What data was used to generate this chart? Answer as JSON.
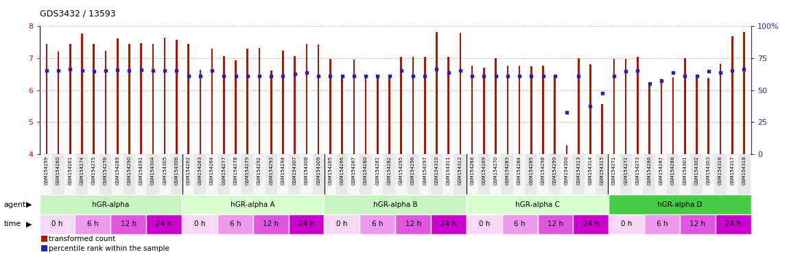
{
  "title": "GDS3432 / 13593",
  "samples": [
    "GSM154259",
    "GSM154260",
    "GSM154261",
    "GSM154274",
    "GSM154275",
    "GSM154276",
    "GSM154289",
    "GSM154290",
    "GSM154291",
    "GSM154304",
    "GSM154305",
    "GSM154306",
    "GSM154262",
    "GSM154263",
    "GSM154264",
    "GSM154277",
    "GSM154278",
    "GSM154279",
    "GSM154292",
    "GSM154293",
    "GSM154294",
    "GSM154307",
    "GSM154308",
    "GSM154309",
    "GSM154265",
    "GSM154266",
    "GSM154267",
    "GSM154280",
    "GSM154281",
    "GSM154282",
    "GSM154295",
    "GSM154296",
    "GSM154297",
    "GSM154310",
    "GSM154311",
    "GSM154312",
    "GSM154268",
    "GSM154269",
    "GSM154270",
    "GSM154283",
    "GSM154284",
    "GSM154285",
    "GSM154298",
    "GSM154299",
    "GSM154300",
    "GSM154313",
    "GSM154314",
    "GSM154315",
    "GSM154271",
    "GSM154272",
    "GSM154273",
    "GSM154286",
    "GSM154287",
    "GSM154288",
    "GSM154301",
    "GSM154302",
    "GSM154303",
    "GSM154316",
    "GSM154317",
    "GSM154318"
  ],
  "red_values": [
    7.45,
    7.22,
    7.46,
    7.78,
    7.46,
    7.23,
    7.62,
    7.46,
    7.47,
    7.46,
    7.65,
    7.58,
    7.45,
    6.63,
    7.3,
    7.06,
    6.93,
    7.3,
    7.33,
    6.62,
    7.23,
    7.07,
    7.44,
    7.42,
    6.98,
    6.42,
    6.96,
    6.42,
    6.38,
    6.39,
    7.05,
    7.05,
    7.05,
    7.82,
    7.05,
    7.8,
    6.76,
    6.7,
    6.99,
    6.76,
    6.76,
    6.75,
    6.77,
    6.45,
    4.28,
    7.0,
    6.8,
    5.55,
    6.98,
    6.97,
    7.05,
    6.23,
    6.35,
    6.4,
    6.99,
    6.47,
    6.38,
    6.82,
    7.68,
    7.81
  ],
  "blue_values": [
    6.62,
    6.62,
    6.65,
    6.62,
    6.6,
    6.62,
    6.64,
    6.62,
    6.64,
    6.62,
    6.61,
    6.62,
    6.43,
    6.43,
    6.62,
    6.43,
    6.43,
    6.43,
    6.43,
    6.43,
    6.43,
    6.5,
    6.55,
    6.43,
    6.43,
    6.43,
    6.43,
    6.43,
    6.43,
    6.43,
    6.62,
    6.45,
    6.43,
    6.65,
    6.55,
    6.62,
    6.43,
    6.43,
    6.43,
    6.43,
    6.43,
    6.43,
    6.43,
    6.43,
    5.3,
    6.43,
    5.5,
    5.9,
    6.43,
    6.6,
    6.62,
    6.2,
    6.3,
    6.55,
    6.43,
    6.43,
    6.6,
    6.55,
    6.62,
    6.65
  ],
  "agents": [
    {
      "label": "hGR-alpha",
      "start": 0,
      "end": 12,
      "color": "#c8f5c0"
    },
    {
      "label": "hGR-alpha A",
      "start": 12,
      "end": 24,
      "color": "#d8ffd0"
    },
    {
      "label": "hGR-alpha B",
      "start": 24,
      "end": 36,
      "color": "#c8f5c0"
    },
    {
      "label": "hGR-alpha C",
      "start": 36,
      "end": 48,
      "color": "#d8ffd0"
    },
    {
      "label": "hGR-alpha D",
      "start": 48,
      "end": 60,
      "color": "#44cc44"
    }
  ],
  "time_colors": [
    "#f8d8f8",
    "#ee99ee",
    "#e055e0",
    "#cc00cc"
  ],
  "time_labels": [
    "0 h",
    "6 h",
    "12 h",
    "24 h"
  ],
  "ylim": [
    4.0,
    8.0
  ],
  "yticks": [
    4,
    5,
    6,
    7,
    8
  ],
  "right_yticks": [
    0,
    25,
    50,
    75,
    100
  ],
  "bar_color": "#bb1100",
  "dot_color": "#2222bb",
  "grid_color": "#888888",
  "ybase": 4.0,
  "n_groups": 5,
  "samples_per_group": 12,
  "time_points": 4,
  "samples_per_time": 3
}
